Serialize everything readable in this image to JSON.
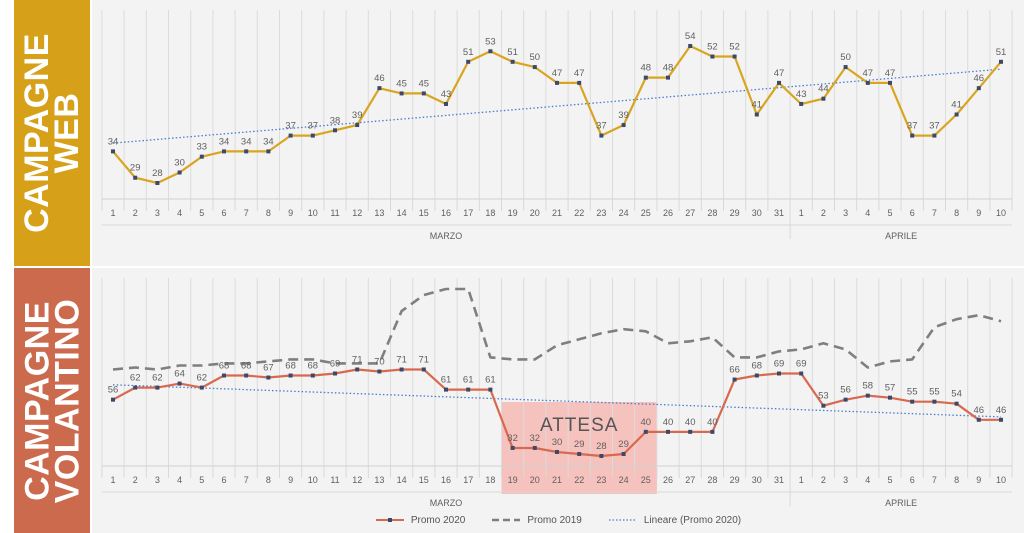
{
  "panels": {
    "top": {
      "label_line1": "CAMPAGNE",
      "label_line2": "WEB"
    },
    "bottom": {
      "label_line1": "CAMPAGNE",
      "label_line2": "VOLANTINO"
    }
  },
  "colors": {
    "band_top": "#d6a019",
    "band_bottom": "#cc6a4e",
    "web_line": "#d9a521",
    "promo2020": "#d7694e",
    "promo2019": "#7f7f7f",
    "trend": "#4a7ccc",
    "attesa_box": "#f4b8b4"
  },
  "chart_data": [
    {
      "type": "line",
      "panel": "top",
      "categories": [
        "1",
        "2",
        "3",
        "4",
        "5",
        "6",
        "7",
        "8",
        "9",
        "10",
        "11",
        "12",
        "13",
        "14",
        "15",
        "16",
        "17",
        "18",
        "19",
        "20",
        "21",
        "22",
        "23",
        "24",
        "25",
        "26",
        "27",
        "28",
        "29",
        "30",
        "31",
        "1",
        "2",
        "3",
        "4",
        "5",
        "6",
        "7",
        "8",
        "9",
        "10"
      ],
      "groups": [
        {
          "label": "MARZO",
          "count": 31
        },
        {
          "label": "APRILE",
          "count": 10
        }
      ],
      "series": [
        {
          "values": [
            34,
            29,
            28,
            30,
            33,
            34,
            34,
            34,
            37,
            37,
            38,
            39,
            46,
            45,
            45,
            43,
            51,
            53,
            51,
            50,
            47,
            47,
            37,
            39,
            48,
            48,
            54,
            52,
            52,
            41,
            47,
            43,
            44,
            50,
            47,
            47,
            37,
            37,
            41,
            46,
            51
          ],
          "style": "solid-markers"
        }
      ],
      "trendline": true,
      "data_labels": true,
      "grid": "vertical"
    },
    {
      "type": "line",
      "panel": "bottom",
      "categories": [
        "1",
        "2",
        "3",
        "4",
        "5",
        "6",
        "7",
        "8",
        "9",
        "10",
        "11",
        "12",
        "13",
        "14",
        "15",
        "16",
        "17",
        "18",
        "19",
        "20",
        "21",
        "22",
        "23",
        "24",
        "25",
        "26",
        "27",
        "28",
        "29",
        "30",
        "31",
        "1",
        "2",
        "3",
        "4",
        "5",
        "6",
        "7",
        "8",
        "9",
        "10"
      ],
      "groups": [
        {
          "label": "MARZO",
          "count": 31
        },
        {
          "label": "APRILE",
          "count": 10
        }
      ],
      "series": [
        {
          "name": "Promo 2020",
          "values": [
            56,
            62,
            62,
            64,
            62,
            68,
            68,
            67,
            68,
            68,
            69,
            71,
            70,
            71,
            71,
            61,
            61,
            61,
            32,
            32,
            30,
            29,
            28,
            29,
            40,
            40,
            40,
            40,
            66,
            68,
            69,
            69,
            53,
            56,
            58,
            57,
            55,
            55,
            54,
            46,
            46
          ],
          "style": "solid-markers"
        },
        {
          "name": "Promo 2019",
          "values": [
            71,
            72,
            71,
            73,
            73,
            74,
            74,
            75,
            76,
            76,
            74,
            74,
            74,
            100,
            108,
            111,
            111,
            77,
            76,
            76,
            83,
            86,
            89,
            91,
            90,
            84,
            85,
            87,
            77,
            77,
            80,
            81,
            84,
            81,
            72,
            75,
            76,
            92,
            96,
            98,
            95
          ],
          "style": "dashed"
        }
      ],
      "trendline": true,
      "trendline_name": "Lineare (Promo 2020)",
      "data_labels_series": "Promo 2020",
      "annotation": {
        "text": "ATTESA",
        "from_index": 18,
        "to_index": 24
      },
      "grid": "vertical"
    }
  ],
  "legend": {
    "promo2020": "Promo 2020",
    "promo2019": "Promo 2019",
    "trend": "Lineare (Promo 2020)"
  }
}
